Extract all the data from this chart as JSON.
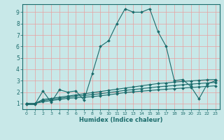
{
  "title": "",
  "xlabel": "Humidex (Indice chaleur)",
  "background_color": "#c8e8e8",
  "grid_color": "#e8a0a0",
  "line_color": "#1a6b6b",
  "xlim": [
    -0.5,
    23.5
  ],
  "ylim": [
    0.5,
    9.7
  ],
  "xticks": [
    0,
    1,
    2,
    3,
    4,
    5,
    6,
    7,
    8,
    9,
    10,
    11,
    12,
    13,
    14,
    15,
    16,
    17,
    18,
    19,
    20,
    21,
    22,
    23
  ],
  "yticks": [
    1,
    2,
    3,
    4,
    5,
    6,
    7,
    8,
    9
  ],
  "lines": [
    {
      "x": [
        0,
        1,
        2,
        3,
        4,
        5,
        6,
        7,
        8,
        9,
        10,
        11,
        12,
        13,
        14,
        15,
        16,
        17,
        18,
        19,
        20,
        21,
        22,
        23
      ],
      "y": [
        0.9,
        0.9,
        2.1,
        1.1,
        2.2,
        2.0,
        2.1,
        1.3,
        3.6,
        6.0,
        6.5,
        8.0,
        9.3,
        9.0,
        9.0,
        9.3,
        7.3,
        6.0,
        3.0,
        3.1,
        2.5,
        1.4,
        2.7,
        3.0
      ]
    },
    {
      "x": [
        0,
        1,
        2,
        3,
        4,
        5,
        6,
        7,
        8,
        9,
        10,
        11,
        12,
        13,
        14,
        15,
        16,
        17,
        18,
        19,
        20,
        21,
        22,
        23
      ],
      "y": [
        1.0,
        1.0,
        1.35,
        1.45,
        1.55,
        1.65,
        1.75,
        1.85,
        1.95,
        2.05,
        2.15,
        2.25,
        2.35,
        2.45,
        2.55,
        2.65,
        2.75,
        2.8,
        2.88,
        2.93,
        2.98,
        3.03,
        3.08,
        3.1
      ]
    },
    {
      "x": [
        0,
        1,
        2,
        3,
        4,
        5,
        6,
        7,
        8,
        9,
        10,
        11,
        12,
        13,
        14,
        15,
        16,
        17,
        18,
        19,
        20,
        21,
        22,
        23
      ],
      "y": [
        1.0,
        1.0,
        1.25,
        1.35,
        1.45,
        1.55,
        1.65,
        1.7,
        1.78,
        1.86,
        1.95,
        2.05,
        2.15,
        2.22,
        2.3,
        2.38,
        2.46,
        2.52,
        2.58,
        2.64,
        2.7,
        2.75,
        2.8,
        2.85
      ]
    },
    {
      "x": [
        0,
        1,
        2,
        3,
        4,
        5,
        6,
        7,
        8,
        9,
        10,
        11,
        12,
        13,
        14,
        15,
        16,
        17,
        18,
        19,
        20,
        21,
        22,
        23
      ],
      "y": [
        1.0,
        1.0,
        1.15,
        1.25,
        1.35,
        1.45,
        1.5,
        1.55,
        1.6,
        1.68,
        1.76,
        1.86,
        1.96,
        2.02,
        2.08,
        2.14,
        2.2,
        2.25,
        2.3,
        2.35,
        2.4,
        2.45,
        2.5,
        2.55
      ]
    }
  ]
}
